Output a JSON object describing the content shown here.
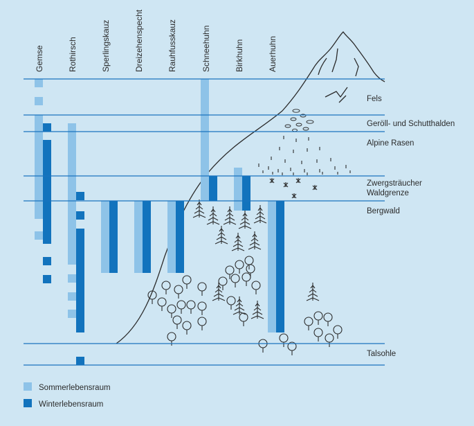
{
  "species": [
    "Gemse",
    "Rothirsch",
    "Sperlingskauz",
    "Dreizehenspecht",
    "Rauhfusskauz",
    "Schneehuhn",
    "Birkhuhn",
    "Auerhuhn"
  ],
  "zones": [
    "Fels",
    "Geröll- und Schutthalden",
    "Alpine Rasen",
    "Zwergsträucher",
    "Waldgrenze",
    "Bergwald",
    "Talsohle"
  ],
  "legend": {
    "summer": "Sommerlebensraum",
    "winter": "Winterlebensraum"
  },
  "colors": {
    "background": "#cfe6f3",
    "line": "#1a73bf",
    "summer": "#8ec3e8",
    "winter": "#1273bd",
    "drawing": "#2b2b2b"
  }
}
